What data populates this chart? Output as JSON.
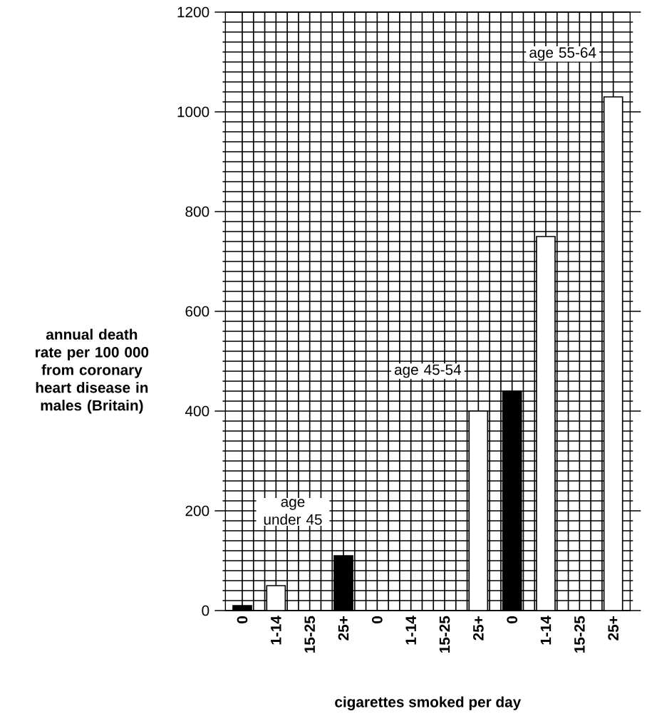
{
  "chart_data": {
    "type": "bar",
    "ylabel": "annual death rate per 100 000 from coronary heart disease in males (Britain)",
    "xlabel": "cigarettes smoked per day",
    "categories": [
      "0",
      "1-14",
      "15-25",
      "25+",
      "0",
      "1-14",
      "15-25",
      "25+",
      "0",
      "1-14",
      "15-25",
      "25+"
    ],
    "values": [
      10,
      50,
      null,
      110,
      null,
      null,
      null,
      400,
      440,
      750,
      null,
      1030
    ],
    "colors": [
      "#000000",
      "#ffffff",
      null,
      "#000000",
      null,
      null,
      null,
      "#ffffff",
      "#000000",
      "#ffffff",
      null,
      "#ffffff"
    ],
    "ylim": [
      0,
      1200
    ],
    "yticks": [
      0,
      200,
      400,
      600,
      800,
      1000,
      1200
    ],
    "grid": true,
    "annotations": [
      "age under 45",
      "age 45-54",
      "age 55-64"
    ]
  }
}
